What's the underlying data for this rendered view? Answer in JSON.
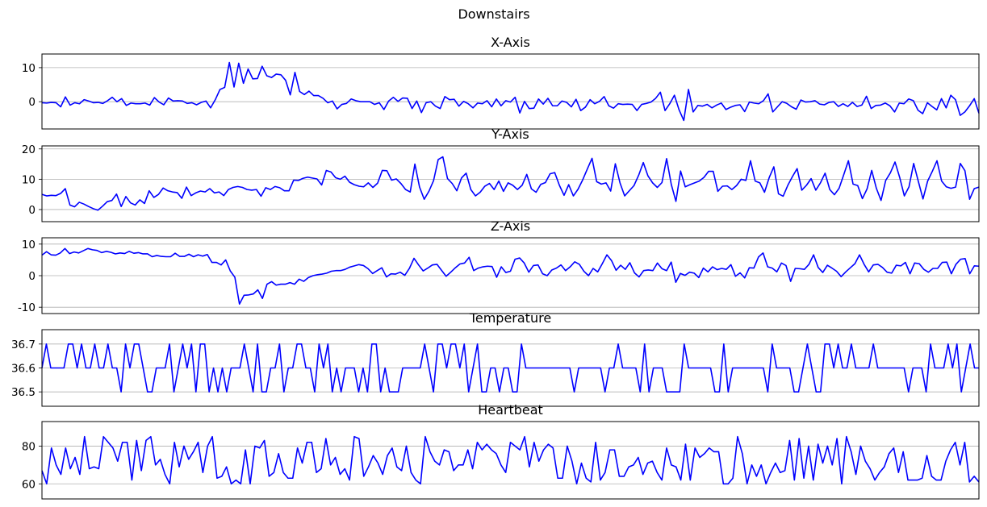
{
  "chart_data": {
    "title": "Downstairs",
    "type": "line",
    "line_color": "#0000ff",
    "grid": "y",
    "panels": [
      {
        "title": "X-Axis",
        "yticks": [
          0,
          10
        ],
        "ylim": [
          -8,
          14
        ],
        "values": [
          -0.3,
          -0.4,
          -0.2,
          -0.3,
          -1.5,
          1.4,
          -1.0,
          -0.3,
          -0.6,
          0.6,
          0.2,
          -0.3,
          -0.2,
          -0.5,
          0.3,
          1.3,
          0.0,
          0.9,
          -1.1,
          -0.4,
          -0.6,
          -0.6,
          -0.4,
          -1.0,
          1.2,
          -0.1,
          -0.9,
          1.1,
          0.2,
          0.3,
          0.2,
          -0.5,
          -0.3,
          -0.9,
          -0.2,
          0.2,
          -1.8,
          0.6,
          3.6,
          4.2,
          11.5,
          4.3,
          11.3,
          5.4,
          9.6,
          6.7,
          6.8,
          10.4,
          7.6,
          7.1,
          8.1,
          7.9,
          6.3,
          2.0,
          8.6,
          3.0,
          2.1,
          3.1,
          1.8,
          1.8,
          1.0,
          -0.3,
          0.2,
          -2.1,
          -0.8,
          -0.5,
          0.8,
          0.3,
          0.0,
          0.0,
          0.0,
          -0.8,
          -0.3,
          -2.3,
          0.2,
          1.3,
          0.1,
          1.1,
          1.0,
          -2.0,
          0.2,
          -3.2,
          -0.3,
          0.0,
          -1.3,
          -2.0,
          1.5,
          0.6,
          0.7,
          -1.3,
          0.1,
          -0.6,
          -1.8,
          -0.4,
          -0.6,
          0.3,
          -1.5,
          0.8,
          -1.2,
          0.3,
          -0.1,
          1.3,
          -3.3,
          0.1,
          -2.0,
          -1.9,
          0.8,
          -0.7,
          1.0,
          -1.2,
          -1.2,
          0.2,
          -0.2,
          -1.5,
          0.7,
          -2.6,
          -1.6,
          0.6,
          -0.6,
          0.1,
          1.5,
          -1.2,
          -1.9,
          -0.6,
          -0.8,
          -0.7,
          -0.8,
          -2.6,
          -0.8,
          -0.5,
          -0.1,
          1.0,
          2.8,
          -2.6,
          -0.6,
          1.9,
          -2.4,
          -5.5,
          3.6,
          -3.0,
          -1.1,
          -1.3,
          -0.8,
          -1.8,
          -1.0,
          -0.4,
          -2.3,
          -1.6,
          -1.1,
          -0.9,
          -2.9,
          -0.1,
          -0.4,
          -0.6,
          0.3,
          2.3,
          -3.0,
          -1.5,
          0.0,
          -0.5,
          -1.5,
          -2.2,
          0.5,
          -0.1,
          0.0,
          0.3,
          -0.7,
          -0.9,
          -0.2,
          0.0,
          -1.4,
          -0.6,
          -1.4,
          -0.2,
          -1.4,
          -1.0,
          1.6,
          -2.0,
          -1.1,
          -1.0,
          -0.4,
          -1.2,
          -3.0,
          -0.4,
          -0.6,
          0.8,
          0.3,
          -2.5,
          -3.5,
          -0.3,
          -1.4,
          -2.4,
          0.9,
          -1.8,
          1.9,
          0.6,
          -4.0,
          -3.0,
          -1.2,
          0.9,
          -3.4
        ]
      },
      {
        "title": "Y-Axis",
        "yticks": [
          0,
          10,
          20
        ],
        "ylim": [
          -4,
          21
        ],
        "values": [
          5.0,
          4.5,
          4.7,
          4.6,
          5.3,
          6.9,
          1.5,
          0.9,
          2.4,
          1.8,
          1.0,
          0.3,
          -0.2,
          1.1,
          2.6,
          3.0,
          5.1,
          1.0,
          4.3,
          2.2,
          1.5,
          3.2,
          2.0,
          6.2,
          4.0,
          5.0,
          7.1,
          6.2,
          5.8,
          5.6,
          3.7,
          7.4,
          4.6,
          5.5,
          6.1,
          5.8,
          6.9,
          5.5,
          5.8,
          4.6,
          6.6,
          7.3,
          7.6,
          7.3,
          6.6,
          6.4,
          6.6,
          4.4,
          7.2,
          6.6,
          7.6,
          7.2,
          6.2,
          6.2,
          9.7,
          9.6,
          10.3,
          10.7,
          10.4,
          10.1,
          8.1,
          12.9,
          12.4,
          10.5,
          10.0,
          11.0,
          9.0,
          8.2,
          7.7,
          7.5,
          8.8,
          7.3,
          8.7,
          12.9,
          12.8,
          9.7,
          10.1,
          8.6,
          6.6,
          5.8,
          15.0,
          7.4,
          3.4,
          6.0,
          9.5,
          16.5,
          17.4,
          10.2,
          8.6,
          6.2,
          10.4,
          12.0,
          6.6,
          4.5,
          5.7,
          7.7,
          8.6,
          6.6,
          9.4,
          6.0,
          8.8,
          8.0,
          6.6,
          8.0,
          11.6,
          6.8,
          5.7,
          8.3,
          8.9,
          11.8,
          12.2,
          8.0,
          4.7,
          8.2,
          4.5,
          6.7,
          9.8,
          13.4,
          16.9,
          9.2,
          8.4,
          8.8,
          6.1,
          15.1,
          8.8,
          4.5,
          6.2,
          7.9,
          11.3,
          15.5,
          11.1,
          8.8,
          7.3,
          8.9,
          16.8,
          8.3,
          2.7,
          12.7,
          7.5,
          8.2,
          8.8,
          9.4,
          10.6,
          12.6,
          12.6,
          6.0,
          7.7,
          7.8,
          6.6,
          7.9,
          10.0,
          9.6,
          16.1,
          9.4,
          8.8,
          5.7,
          10.5,
          14.1,
          5.2,
          4.4,
          8.0,
          10.9,
          13.5,
          6.4,
          8.0,
          10.2,
          6.4,
          8.8,
          12.0,
          6.6,
          4.9,
          7.0,
          11.5,
          16.1,
          8.4,
          7.9,
          3.6,
          6.8,
          12.9,
          7.0,
          3.0,
          9.6,
          12.1,
          15.7,
          10.6,
          4.5,
          7.5,
          15.2,
          9.3,
          3.5,
          9.4,
          12.6,
          16.1,
          9.4,
          7.5,
          7.0,
          7.4,
          15.2,
          12.8,
          3.4,
          6.9,
          7.4
        ]
      },
      {
        "title": "Z-Axis",
        "yticks": [
          -10,
          0,
          10
        ],
        "ylim": [
          -12,
          12
        ],
        "values": [
          6.5,
          7.6,
          6.6,
          6.5,
          7.2,
          8.6,
          7.0,
          7.5,
          7.2,
          7.9,
          8.6,
          8.2,
          8.0,
          7.3,
          7.7,
          7.4,
          6.9,
          7.2,
          7.0,
          7.7,
          7.1,
          7.3,
          6.9,
          6.9,
          6.0,
          6.4,
          6.1,
          6.0,
          6.0,
          7.1,
          6.1,
          6.1,
          6.8,
          6.0,
          6.6,
          6.2,
          6.7,
          4.2,
          4.2,
          3.4,
          5.0,
          1.5,
          -0.5,
          -9.0,
          -6.2,
          -6.1,
          -5.8,
          -4.5,
          -7.2,
          -2.7,
          -1.9,
          -3.0,
          -2.7,
          -2.7,
          -2.2,
          -2.7,
          -1.1,
          -1.8,
          -0.6,
          0.0,
          0.3,
          0.5,
          0.8,
          1.4,
          1.6,
          1.6,
          2.0,
          2.7,
          3.1,
          3.5,
          3.2,
          2.2,
          0.7,
          1.6,
          2.5,
          -0.4,
          0.6,
          0.5,
          1.1,
          0.1,
          2.3,
          5.5,
          3.4,
          1.5,
          2.4,
          3.4,
          3.6,
          1.7,
          -0.2,
          1.1,
          2.5,
          3.7,
          4.0,
          5.8,
          1.6,
          2.4,
          2.8,
          3.0,
          2.9,
          -0.5,
          2.8,
          1.0,
          1.4,
          5.2,
          5.6,
          4.0,
          1.1,
          3.2,
          3.4,
          0.6,
          0.0,
          1.8,
          2.4,
          3.4,
          1.6,
          2.8,
          4.4,
          3.6,
          1.4,
          0.0,
          2.3,
          1.2,
          3.8,
          6.6,
          4.8,
          1.7,
          3.3,
          2.0,
          4.1,
          0.9,
          -0.4,
          1.6,
          1.8,
          1.6,
          4.0,
          2.2,
          1.6,
          4.3,
          -2.1,
          0.7,
          0.1,
          1.1,
          0.8,
          -0.6,
          2.4,
          1.2,
          2.8,
          1.9,
          2.3,
          2.0,
          3.5,
          -0.2,
          0.9,
          -0.7,
          2.5,
          2.4,
          5.9,
          7.2,
          2.8,
          2.4,
          1.2,
          4.0,
          3.2,
          -1.8,
          2.3,
          2.2,
          2.0,
          3.6,
          6.6,
          2.6,
          1.0,
          3.3,
          2.4,
          1.4,
          -0.3,
          1.2,
          2.5,
          3.8,
          6.6,
          3.6,
          1.2,
          3.4,
          3.6,
          2.6,
          1.1,
          0.8,
          3.3,
          3.1,
          4.2,
          0.6,
          4.0,
          3.8,
          2.0,
          1.1,
          2.3,
          2.3,
          4.2,
          4.3,
          0.6,
          3.6,
          5.2,
          5.4,
          0.6,
          3.1,
          3.0
        ]
      },
      {
        "title": "Temperature",
        "yticks": [
          36.5,
          36.6,
          36.7
        ],
        "ylim": [
          36.44,
          36.76
        ],
        "values": [
          36.6,
          36.7,
          36.6,
          36.6,
          36.6,
          36.6,
          36.7,
          36.7,
          36.6,
          36.7,
          36.6,
          36.6,
          36.7,
          36.6,
          36.6,
          36.7,
          36.6,
          36.6,
          36.5,
          36.7,
          36.6,
          36.7,
          36.7,
          36.6,
          36.5,
          36.5,
          36.6,
          36.6,
          36.6,
          36.7,
          36.5,
          36.6,
          36.7,
          36.6,
          36.7,
          36.5,
          36.7,
          36.7,
          36.5,
          36.6,
          36.5,
          36.6,
          36.5,
          36.6,
          36.6,
          36.6,
          36.7,
          36.6,
          36.5,
          36.7,
          36.5,
          36.5,
          36.6,
          36.6,
          36.7,
          36.5,
          36.6,
          36.6,
          36.7,
          36.7,
          36.6,
          36.6,
          36.5,
          36.7,
          36.6,
          36.7,
          36.5,
          36.6,
          36.5,
          36.6,
          36.6,
          36.6,
          36.5,
          36.6,
          36.5,
          36.7,
          36.7,
          36.5,
          36.6,
          36.5,
          36.5,
          36.5,
          36.6,
          36.6,
          36.6,
          36.6,
          36.6,
          36.7,
          36.6,
          36.5,
          36.7,
          36.7,
          36.6,
          36.7,
          36.7,
          36.6,
          36.7,
          36.5,
          36.6,
          36.7,
          36.5,
          36.5,
          36.6,
          36.6,
          36.5,
          36.6,
          36.6,
          36.5,
          36.5,
          36.7,
          36.6,
          36.6,
          36.6,
          36.6,
          36.6,
          36.6,
          36.6,
          36.6,
          36.6,
          36.6,
          36.6,
          36.5,
          36.6,
          36.6,
          36.6,
          36.6,
          36.6,
          36.6,
          36.5,
          36.6,
          36.6,
          36.7,
          36.6,
          36.6,
          36.6,
          36.6,
          36.5,
          36.7,
          36.5,
          36.6,
          36.6,
          36.6,
          36.5,
          36.5,
          36.5,
          36.5,
          36.7,
          36.6,
          36.6,
          36.6,
          36.6,
          36.6,
          36.6,
          36.5,
          36.5,
          36.7,
          36.5,
          36.6,
          36.6,
          36.6,
          36.6,
          36.6,
          36.6,
          36.6,
          36.6,
          36.5,
          36.7,
          36.6,
          36.6,
          36.6,
          36.6,
          36.5,
          36.5,
          36.6,
          36.7,
          36.6,
          36.5,
          36.5,
          36.7,
          36.7,
          36.6,
          36.7,
          36.6,
          36.6,
          36.7,
          36.6,
          36.6,
          36.6,
          36.6,
          36.7,
          36.6,
          36.6,
          36.6,
          36.6,
          36.6,
          36.6,
          36.6,
          36.5,
          36.6,
          36.6,
          36.6,
          36.5,
          36.7,
          36.6,
          36.6,
          36.6,
          36.7,
          36.6,
          36.7,
          36.5,
          36.6,
          36.7,
          36.6,
          36.6
        ]
      },
      {
        "title": "Heartbeat",
        "yticks": [
          60,
          80
        ],
        "ylim": [
          52,
          93
        ],
        "values": [
          67,
          60,
          79,
          70,
          65,
          79,
          68,
          74,
          65,
          85,
          68,
          69,
          68,
          85,
          82,
          79,
          72,
          82,
          82,
          62,
          83,
          67,
          83,
          85,
          70,
          73,
          65,
          60,
          82,
          69,
          80,
          73,
          77,
          82,
          66,
          80,
          85,
          63,
          64,
          69,
          60,
          62,
          60,
          78,
          60,
          80,
          79,
          83,
          64,
          66,
          76,
          66,
          63,
          63,
          79,
          71,
          82,
          82,
          66,
          68,
          84,
          70,
          74,
          65,
          68,
          62,
          85,
          84,
          64,
          69,
          75,
          71,
          65,
          75,
          79,
          69,
          67,
          80,
          66,
          62,
          60,
          85,
          77,
          72,
          70,
          78,
          77,
          67,
          70,
          70,
          78,
          68,
          82,
          78,
          81,
          78,
          76,
          70,
          66,
          82,
          80,
          78,
          85,
          69,
          82,
          72,
          78,
          81,
          79,
          63,
          63,
          80,
          72,
          60,
          71,
          63,
          61,
          82,
          62,
          66,
          78,
          78,
          64,
          64,
          69,
          70,
          74,
          65,
          71,
          72,
          66,
          62,
          79,
          70,
          69,
          62,
          81,
          62,
          79,
          74,
          76,
          79,
          77,
          77,
          60,
          60,
          63,
          85,
          76,
          60,
          70,
          64,
          70,
          60,
          66,
          71,
          66,
          67,
          83,
          62,
          84,
          63,
          80,
          62,
          81,
          71,
          80,
          70,
          84,
          60,
          85,
          77,
          65,
          80,
          72,
          68,
          62,
          66,
          69,
          76,
          79,
          66,
          77,
          62,
          62,
          62,
          63,
          75,
          64,
          62,
          62,
          72,
          78,
          82,
          70,
          82,
          61,
          64,
          61
        ]
      }
    ]
  }
}
